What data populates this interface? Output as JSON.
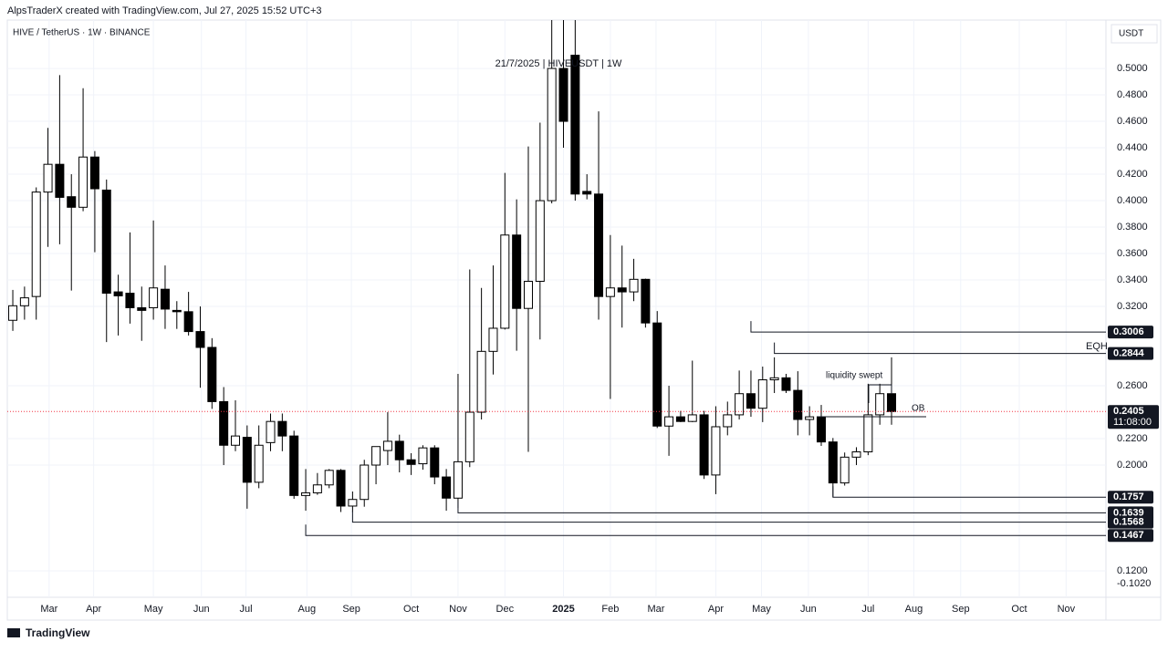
{
  "chart_data": {
    "type": "candlestick",
    "header": "AlpsTraderX created with TradingView.com, Jul 27, 2025 15:52 UTC+3",
    "symbol": "HIVE / TetherUS · 1W · BINANCE",
    "subtitle": "21/7/2025 | HIVEUSDT | 1W",
    "axis_unit": "USDT",
    "axis_note": "-0.1020",
    "footer": "TradingView",
    "up_color": "#ffffff",
    "down_color": "#000000",
    "grid": true,
    "x": [
      0,
      1,
      2,
      3,
      4,
      5,
      6,
      7,
      8,
      9,
      10,
      11,
      12,
      13,
      14,
      15,
      16,
      17,
      18,
      19,
      20,
      21,
      22,
      23,
      24,
      25,
      26,
      27,
      28,
      29,
      30,
      31,
      32,
      33,
      34,
      35,
      36,
      37,
      38,
      39,
      40,
      41,
      42,
      43,
      44,
      45,
      46,
      47,
      48,
      49,
      50,
      51,
      52,
      53,
      54,
      55,
      56,
      57,
      58,
      59,
      60,
      61,
      62,
      63,
      64,
      65,
      66,
      67,
      68,
      69,
      70,
      71,
      72,
      73,
      74,
      75
    ],
    "open": [
      0.3095,
      0.3205,
      0.3275,
      0.4065,
      0.4275,
      0.403,
      0.395,
      0.433,
      0.408,
      0.331,
      0.33,
      0.319,
      0.319,
      0.333,
      0.317,
      0.316,
      0.301,
      0.289,
      0.248,
      0.215,
      0.221,
      0.187,
      0.217,
      0.233,
      0.222,
      0.177,
      0.179,
      0.185,
      0.196,
      0.169,
      0.174,
      0.2,
      0.211,
      0.218,
      0.204,
      0.201,
      0.213,
      0.191,
      0.175,
      0.2025,
      0.24,
      0.286,
      0.3035,
      0.374,
      0.3185,
      0.339,
      0.4,
      0.5,
      0.51,
      0.407,
      0.405,
      0.3275,
      0.334,
      0.331,
      0.3405,
      0.3075,
      0.2295,
      0.2365,
      0.233,
      0.238,
      0.1925,
      0.229,
      0.238,
      0.254,
      0.243,
      0.2645,
      0.266,
      0.2565,
      0.2345,
      0.2365,
      0.2175,
      0.1865,
      0.206,
      0.21,
      0.238,
      0.254
    ],
    "high": [
      0.3325,
      0.335,
      0.41,
      0.455,
      0.495,
      0.42,
      0.485,
      0.4375,
      0.416,
      0.344,
      0.376,
      0.335,
      0.385,
      0.351,
      0.324,
      0.331,
      0.32,
      0.296,
      0.259,
      0.249,
      0.23,
      0.23,
      0.239,
      0.239,
      0.226,
      0.197,
      0.194,
      0.197,
      0.197,
      0.18,
      0.204,
      0.214,
      0.24,
      0.223,
      0.209,
      0.215,
      0.215,
      0.197,
      0.269,
      0.348,
      0.334,
      0.351,
      0.421,
      0.401,
      0.441,
      0.459,
      0.54,
      0.545,
      0.54,
      0.42,
      0.4675,
      0.374,
      0.366,
      0.356,
      0.341,
      0.3165,
      0.26,
      0.241,
      0.279,
      0.241,
      0.2445,
      0.248,
      0.2715,
      0.2715,
      0.2745,
      0.2815,
      0.269,
      0.271,
      0.2445,
      0.2455,
      0.2205,
      0.2095,
      0.2135,
      0.2615,
      0.2615,
      0.2815
    ],
    "low": [
      0.3015,
      0.31,
      0.31,
      0.365,
      0.367,
      0.332,
      0.392,
      0.361,
      0.293,
      0.298,
      0.307,
      0.294,
      0.31,
      0.303,
      0.303,
      0.298,
      0.2585,
      0.2425,
      0.2,
      0.2105,
      0.167,
      0.1825,
      0.2105,
      0.2105,
      0.1745,
      0.1655,
      0.1775,
      0.1825,
      0.1645,
      0.1645,
      0.1685,
      0.1855,
      0.2,
      0.1945,
      0.1925,
      0.1965,
      0.1855,
      0.1655,
      0.1675,
      0.1985,
      0.2345,
      0.2685,
      0.3025,
      0.2865,
      0.21,
      0.295,
      0.398,
      0.44,
      0.4,
      0.401,
      0.31,
      0.25,
      0.304,
      0.324,
      0.304,
      0.228,
      0.207,
      0.2325,
      0.2325,
      0.1895,
      0.178,
      0.2225,
      0.2345,
      0.2365,
      0.2325,
      0.2545,
      0.2545,
      0.2225,
      0.2225,
      0.2145,
      0.176,
      0.1845,
      0.2,
      0.2075,
      0.2305,
      0.2305
    ],
    "close": [
      0.3205,
      0.3265,
      0.4065,
      0.4275,
      0.4025,
      0.395,
      0.433,
      0.409,
      0.33,
      0.328,
      0.319,
      0.317,
      0.334,
      0.318,
      0.316,
      0.301,
      0.289,
      0.248,
      0.215,
      0.222,
      0.187,
      0.215,
      0.233,
      0.222,
      0.177,
      0.179,
      0.185,
      0.196,
      0.169,
      0.174,
      0.2,
      0.214,
      0.218,
      0.204,
      0.2005,
      0.213,
      0.191,
      0.175,
      0.2025,
      0.24,
      0.286,
      0.3035,
      0.374,
      0.3185,
      0.339,
      0.4,
      0.5,
      0.46,
      0.405,
      0.405,
      0.3275,
      0.334,
      0.331,
      0.3405,
      0.3075,
      0.2295,
      0.2365,
      0.233,
      0.238,
      0.1925,
      0.229,
      0.238,
      0.254,
      0.243,
      0.2645,
      0.266,
      0.2565,
      0.2345,
      0.2365,
      0.2175,
      0.1865,
      0.206,
      0.21,
      0.238,
      0.254,
      0.2405
    ],
    "xlim": [
      -0.47,
      93.3
    ],
    "ylim": [
      0.1,
      0.5366
    ],
    "xticks": [
      {
        "value": 3.1,
        "label": "Mar"
      },
      {
        "value": 6.9,
        "label": "Apr"
      },
      {
        "value": 12.0,
        "label": "May"
      },
      {
        "value": 16.1,
        "label": "Jun"
      },
      {
        "value": 19.9,
        "label": "Jul"
      },
      {
        "value": 25.1,
        "label": "Aug"
      },
      {
        "value": 28.9,
        "label": "Sep"
      },
      {
        "value": 34.0,
        "label": "Oct"
      },
      {
        "value": 38.0,
        "label": "Nov"
      },
      {
        "value": 42.0,
        "label": "Dec"
      },
      {
        "value": 47.0,
        "label": "2025"
      },
      {
        "value": 51.0,
        "label": "Feb"
      },
      {
        "value": 54.9,
        "label": "Mar"
      },
      {
        "value": 60.0,
        "label": "Apr"
      },
      {
        "value": 63.9,
        "label": "May"
      },
      {
        "value": 67.9,
        "label": "Jun"
      },
      {
        "value": 73.0,
        "label": "Jul"
      },
      {
        "value": 76.9,
        "label": "Aug"
      },
      {
        "value": 80.9,
        "label": "Sep"
      },
      {
        "value": 85.9,
        "label": "Oct"
      },
      {
        "value": 89.9,
        "label": "Nov"
      }
    ],
    "yticks": [
      {
        "value": 0.5,
        "label": "0.5000"
      },
      {
        "value": 0.48,
        "label": "0.4800"
      },
      {
        "value": 0.46,
        "label": "0.4600"
      },
      {
        "value": 0.44,
        "label": "0.4400"
      },
      {
        "value": 0.42,
        "label": "0.4200"
      },
      {
        "value": 0.4,
        "label": "0.4000"
      },
      {
        "value": 0.38,
        "label": "0.3800"
      },
      {
        "value": 0.36,
        "label": "0.3600"
      },
      {
        "value": 0.34,
        "label": "0.3400"
      },
      {
        "value": 0.32,
        "label": "0.3200"
      },
      {
        "value": 0.26,
        "label": "0.2600"
      },
      {
        "value": 0.22,
        "label": "0.2200"
      },
      {
        "value": 0.2,
        "label": "0.2000"
      },
      {
        "value": 0.12,
        "label": "0.1200"
      }
    ],
    "levels": [
      {
        "value": 0.3006,
        "start": 63
      },
      {
        "value": 0.2844,
        "start": 65
      },
      {
        "value": 0.1757,
        "start": 70
      },
      {
        "value": 0.1639,
        "start": 38
      },
      {
        "value": 0.1568,
        "start": 29
      },
      {
        "value": 0.1467,
        "start": 25
      }
    ],
    "last_price": 0.2405,
    "countdown": "11:08:00",
    "annotations": [
      "EQH",
      "liquidity swept",
      "OB"
    ]
  }
}
